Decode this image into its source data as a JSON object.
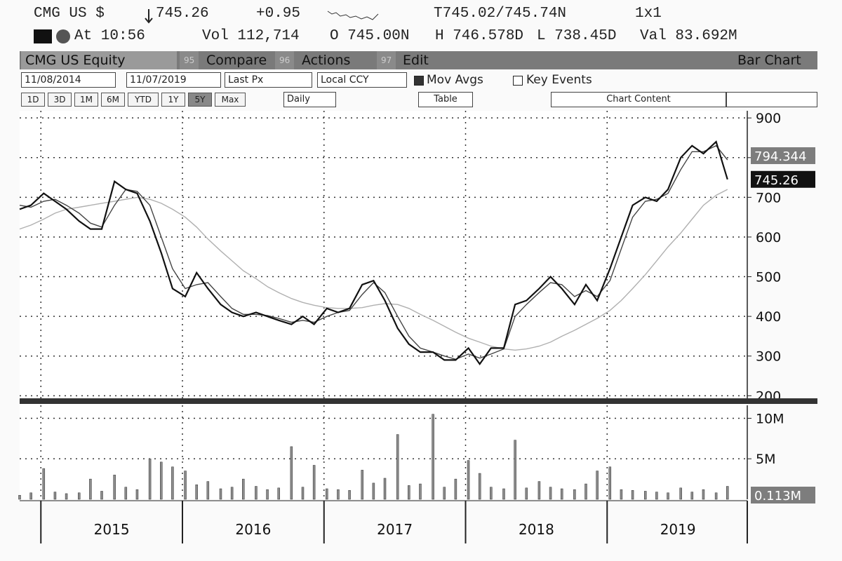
{
  "header": {
    "ticker": "CMG US $",
    "last": "745.26",
    "change": "+0.95",
    "bid_ask": "T745.02/745.74N",
    "size": "1x1",
    "time": "At 10:56",
    "volume": "Vol 112,714",
    "open": "O 745.00N",
    "high": "H 746.578D",
    "low": "L 738.45D",
    "value": "Val 83.692M"
  },
  "toolbar": {
    "security": "CMG US Equity",
    "compare_key": "95",
    "compare": "Compare",
    "actions_key": "96",
    "actions": "Actions",
    "edit_key": "97",
    "edit": "Edit",
    "chart_type": "Bar Chart",
    "start_date": "11/08/2014",
    "end_date": "11/07/2019",
    "field": "Last Px",
    "currency": "Local CCY",
    "mov_avgs": "Mov Avgs",
    "key_events": "Key Events",
    "periods": [
      "1D",
      "3D",
      "1M",
      "6M",
      "YTD",
      "1Y",
      "5Y",
      "Max"
    ],
    "frequency": "Daily",
    "table": "Table",
    "chart_content": "Chart Content"
  },
  "chart_data": [
    {
      "type": "line",
      "grid": true,
      "x": [
        2014.85,
        2014.93,
        2015.02,
        2015.1,
        2015.18,
        2015.27,
        2015.35,
        2015.43,
        2015.52,
        2015.6,
        2015.68,
        2015.77,
        2015.85,
        2015.93,
        2016.02,
        2016.1,
        2016.18,
        2016.27,
        2016.35,
        2016.43,
        2016.52,
        2016.6,
        2016.68,
        2016.77,
        2016.85,
        2016.93,
        2017.02,
        2017.1,
        2017.18,
        2017.27,
        2017.35,
        2017.43,
        2017.52,
        2017.6,
        2017.68,
        2017.77,
        2017.85,
        2017.93,
        2018.02,
        2018.1,
        2018.18,
        2018.27,
        2018.35,
        2018.43,
        2018.52,
        2018.6,
        2018.68,
        2018.77,
        2018.85,
        2018.93,
        2019.02,
        2019.1,
        2019.18,
        2019.27,
        2019.35,
        2019.43,
        2019.52,
        2019.6,
        2019.68,
        2019.77,
        2019.85
      ],
      "series": [
        {
          "color": "#b0b0b0",
          "values": [
            620,
            630,
            645,
            660,
            670,
            675,
            680,
            685,
            690,
            695,
            700,
            695,
            685,
            670,
            650,
            625,
            595,
            565,
            540,
            515,
            495,
            475,
            460,
            445,
            435,
            428,
            422,
            420,
            420,
            422,
            428,
            432,
            430,
            420,
            405,
            390,
            375,
            360,
            345,
            335,
            325,
            318,
            315,
            318,
            325,
            335,
            350,
            365,
            380,
            395,
            415,
            440,
            470,
            505,
            540,
            575,
            610,
            645,
            680,
            705,
            720
          ]
        },
        {
          "color": "#444444",
          "values": [
            680,
            675,
            690,
            695,
            680,
            660,
            635,
            625,
            680,
            720,
            715,
            680,
            600,
            520,
            470,
            480,
            485,
            450,
            420,
            405,
            405,
            402,
            395,
            385,
            390,
            385,
            400,
            410,
            415,
            455,
            485,
            460,
            400,
            350,
            320,
            310,
            300,
            292,
            305,
            295,
            305,
            318,
            400,
            430,
            460,
            485,
            480,
            450,
            465,
            450,
            490,
            570,
            650,
            690,
            695,
            710,
            770,
            815,
            815,
            830,
            794.344
          ]
        },
        {
          "color": "#111111",
          "values": [
            670,
            680,
            710,
            690,
            670,
            640,
            620,
            620,
            740,
            720,
            710,
            640,
            560,
            470,
            450,
            510,
            470,
            430,
            410,
            400,
            410,
            400,
            390,
            380,
            400,
            380,
            420,
            410,
            420,
            480,
            490,
            440,
            370,
            330,
            310,
            310,
            290,
            290,
            320,
            280,
            320,
            320,
            430,
            440,
            470,
            500,
            470,
            430,
            480,
            440,
            520,
            600,
            680,
            700,
            690,
            720,
            800,
            830,
            810,
            840,
            745.26
          ]
        }
      ],
      "ma_tag": "794.344",
      "price_tag": "745.26",
      "xlim": [
        2014.85,
        2019.99
      ],
      "xticks": [
        {
          "value": 2015,
          "label": "2015"
        },
        {
          "value": 2016,
          "label": "2016"
        },
        {
          "value": 2017,
          "label": "2017"
        },
        {
          "value": 2018,
          "label": "2018"
        },
        {
          "value": 2019,
          "label": "2019"
        }
      ],
      "ylim": [
        190,
        918
      ],
      "yticks": [
        200,
        300,
        400,
        500,
        600,
        700,
        800,
        900
      ]
    },
    {
      "type": "bar",
      "grid": true,
      "color": "#8c8c8c",
      "x": [
        2014.85,
        2014.93,
        2015.02,
        2015.1,
        2015.18,
        2015.27,
        2015.35,
        2015.43,
        2015.52,
        2015.6,
        2015.68,
        2015.77,
        2015.85,
        2015.93,
        2016.02,
        2016.1,
        2016.18,
        2016.27,
        2016.35,
        2016.43,
        2016.52,
        2016.6,
        2016.68,
        2016.77,
        2016.85,
        2016.93,
        2017.02,
        2017.1,
        2017.18,
        2017.27,
        2017.35,
        2017.43,
        2017.52,
        2017.6,
        2017.68,
        2017.77,
        2017.85,
        2017.93,
        2018.02,
        2018.1,
        2018.18,
        2018.27,
        2018.35,
        2018.43,
        2018.52,
        2018.6,
        2018.68,
        2018.77,
        2018.85,
        2018.93,
        2019.02,
        2019.1,
        2019.18,
        2019.27,
        2019.35,
        2019.43,
        2019.52,
        2019.6,
        2019.68,
        2019.77,
        2019.85
      ],
      "values": [
        0.5,
        0.8,
        3.8,
        0.9,
        0.7,
        0.8,
        2.5,
        1.0,
        3.0,
        1.5,
        1.2,
        5.0,
        4.6,
        4.0,
        3.5,
        1.8,
        2.2,
        1.3,
        1.5,
        2.5,
        1.6,
        1.2,
        1.4,
        6.5,
        1.5,
        4.2,
        1.3,
        1.2,
        1.1,
        3.6,
        2.0,
        2.6,
        8.0,
        1.7,
        1.9,
        10.5,
        1.5,
        2.5,
        4.8,
        3.2,
        1.5,
        1.3,
        7.3,
        1.4,
        2.2,
        1.5,
        1.3,
        1.2,
        1.9,
        3.5,
        4.0,
        1.2,
        1.1,
        1.0,
        0.9,
        0.8,
        1.4,
        0.9,
        1.2,
        0.8,
        1.6
      ],
      "volume_tag": "0.113M",
      "xlim": [
        2014.85,
        2019.99
      ],
      "ylim": [
        0,
        11.6
      ],
      "yticks": [
        {
          "value": 5,
          "label": "5M"
        },
        {
          "value": 10,
          "label": "10M"
        }
      ]
    }
  ]
}
